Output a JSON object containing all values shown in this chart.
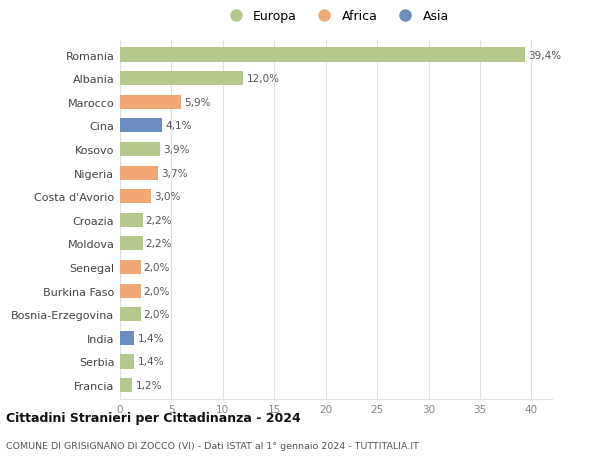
{
  "countries": [
    "Romania",
    "Albania",
    "Marocco",
    "Cina",
    "Kosovo",
    "Nigeria",
    "Costa d'Avorio",
    "Croazia",
    "Moldova",
    "Senegal",
    "Burkina Faso",
    "Bosnia-Erzegovina",
    "India",
    "Serbia",
    "Francia"
  ],
  "values": [
    39.4,
    12.0,
    5.9,
    4.1,
    3.9,
    3.7,
    3.0,
    2.2,
    2.2,
    2.0,
    2.0,
    2.0,
    1.4,
    1.4,
    1.2
  ],
  "labels": [
    "39,4%",
    "12,0%",
    "5,9%",
    "4,1%",
    "3,9%",
    "3,7%",
    "3,0%",
    "2,2%",
    "2,2%",
    "2,0%",
    "2,0%",
    "2,0%",
    "1,4%",
    "1,4%",
    "1,2%"
  ],
  "continents": [
    "Europa",
    "Europa",
    "Africa",
    "Asia",
    "Europa",
    "Africa",
    "Africa",
    "Europa",
    "Europa",
    "Africa",
    "Africa",
    "Europa",
    "Asia",
    "Europa",
    "Europa"
  ],
  "continent_colors": {
    "Europa": "#b5c98e",
    "Africa": "#f0a875",
    "Asia": "#6b8cbf"
  },
  "legend_order": [
    "Europa",
    "Africa",
    "Asia"
  ],
  "title": "Cittadini Stranieri per Cittadinanza - 2024",
  "subtitle": "COMUNE DI GRISIGNANO DI ZOCCO (VI) - Dati ISTAT al 1° gennaio 2024 - TUTTITALIA.IT",
  "xlim": [
    0,
    42
  ],
  "xticks": [
    0,
    5,
    10,
    15,
    20,
    25,
    30,
    35,
    40
  ],
  "background_color": "#ffffff",
  "grid_color": "#e0e0e0",
  "bar_height": 0.6
}
